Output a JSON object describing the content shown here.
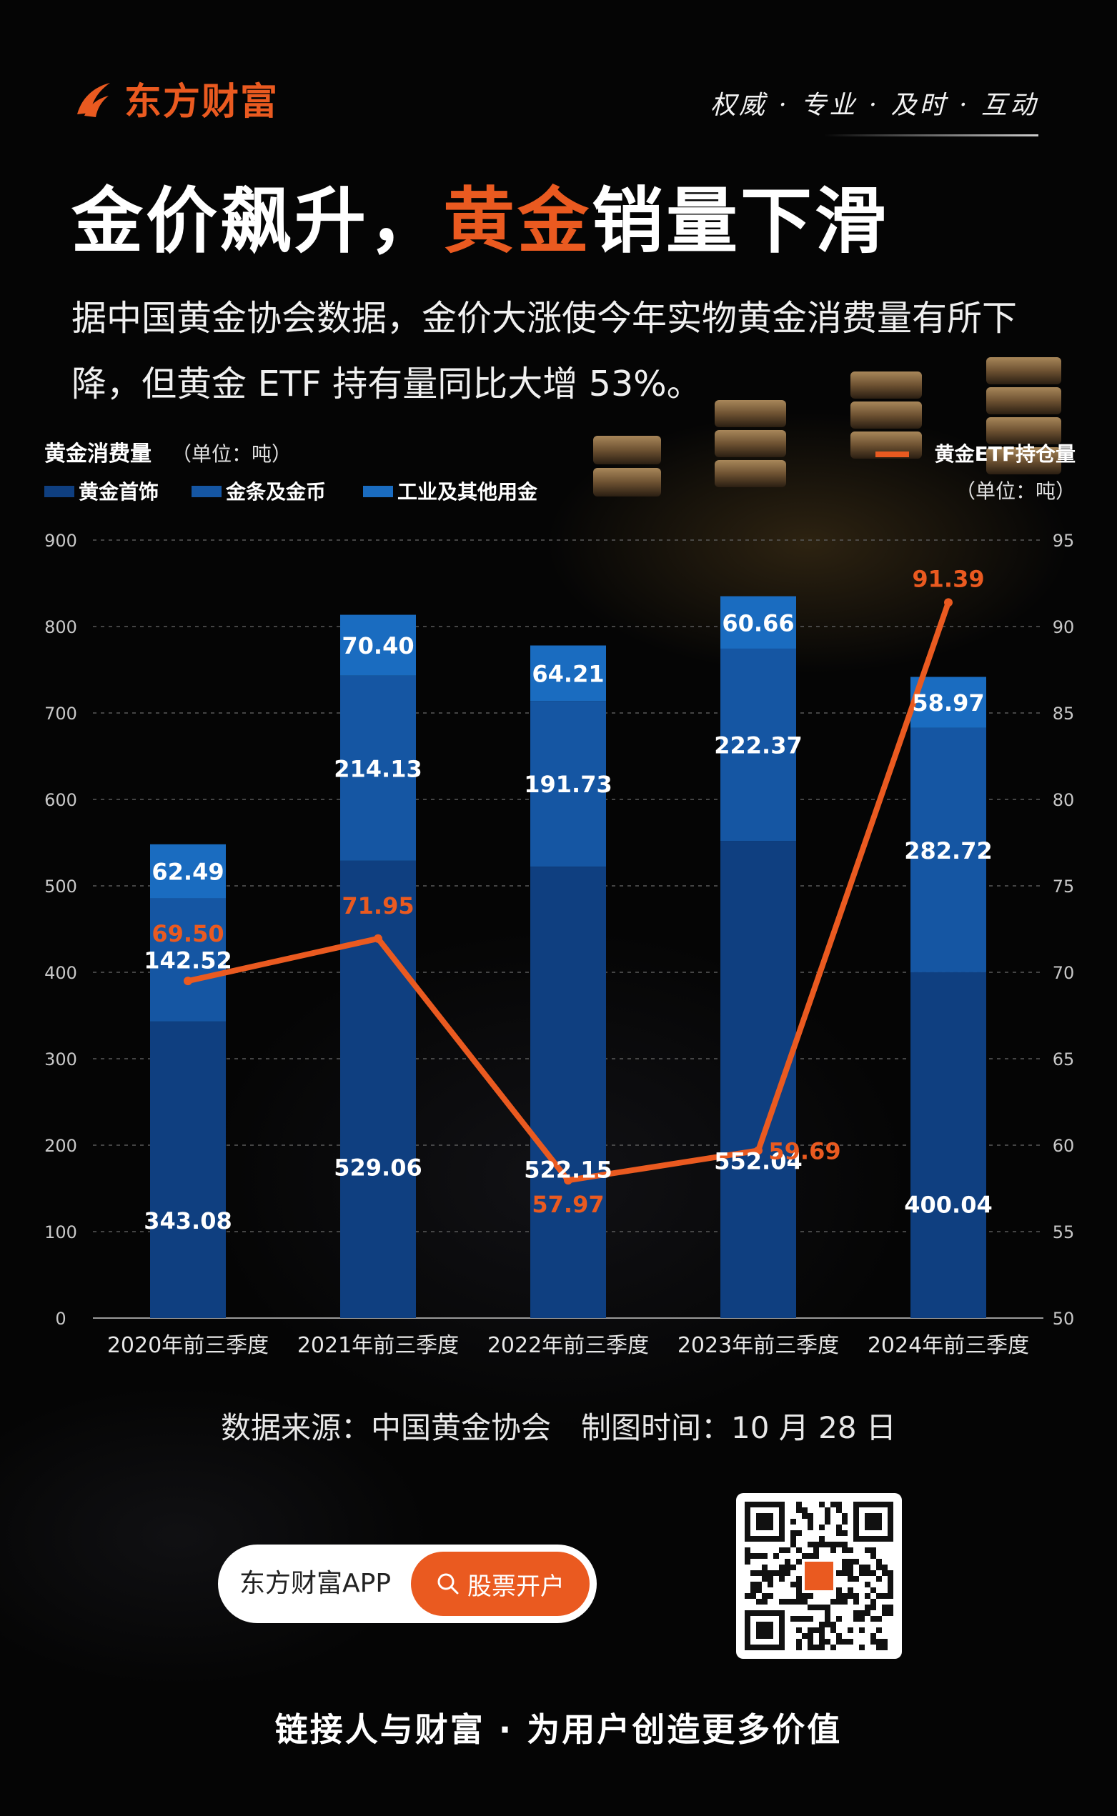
{
  "brand": {
    "name": "东方财富",
    "slogan": "权威 · 专业 · 及时 · 互动",
    "color": "#ea5a20"
  },
  "title": {
    "part1": "金价飙升，",
    "highlight": "黄金",
    "part2": "销量下滑"
  },
  "subtitle": "据中国黄金协会数据，金价大涨使今年实物黄金消费量有所下降，但黄金 ETF 持有量同比大增 53%。",
  "chart_data": {
    "type": "bar",
    "stacked": true,
    "left_axis_title": "黄金消费量",
    "left_axis_unit": "（单位：吨）",
    "right_axis_series_label": "黄金ETF持仓量",
    "right_axis_unit": "（单位：吨）",
    "categories": [
      "2020年前三季度",
      "2021年前三季度",
      "2022年前三季度",
      "2023年前三季度",
      "2024年前三季度"
    ],
    "series": [
      {
        "name": "黄金首饰",
        "color": "#0f3f80",
        "values": [
          343.08,
          529.06,
          522.15,
          552.04,
          400.04
        ],
        "labels": [
          "343.08",
          "529.06",
          "522.15",
          "552.04",
          "400.04"
        ]
      },
      {
        "name": "金条及金币",
        "color": "#1556a3",
        "values": [
          142.52,
          214.13,
          191.73,
          222.37,
          282.72
        ],
        "labels": [
          "142.52",
          "214.13",
          "191.73",
          "222.37",
          "282.72"
        ]
      },
      {
        "name": "工业及其他用金",
        "color": "#1a6cc0",
        "values": [
          62.49,
          70.4,
          64.21,
          60.66,
          58.97
        ],
        "labels": [
          "62.49",
          "70.40",
          "64.21",
          "60.66",
          "58.97"
        ]
      }
    ],
    "line_series": {
      "name": "黄金ETF持仓量",
      "color": "#ea5a20",
      "values": [
        69.5,
        71.95,
        57.97,
        59.69,
        91.39
      ],
      "labels": [
        "69.50",
        "71.95",
        "57.97",
        "59.69",
        "91.39"
      ]
    },
    "left_ylim": [
      0,
      900
    ],
    "left_ticks": [
      "0",
      "100",
      "200",
      "300",
      "400",
      "500",
      "600",
      "700",
      "800",
      "900"
    ],
    "right_ylim": [
      50,
      95
    ],
    "right_ticks": [
      "50",
      "55",
      "60",
      "65",
      "70",
      "75",
      "80",
      "85",
      "90",
      "95"
    ],
    "grid": true,
    "legend": "top-left"
  },
  "source": "数据来源：中国黄金协会　制图时间：10 月 28 日",
  "app": {
    "name": "东方财富APP",
    "button": "股票开户"
  },
  "footer": "链接人与财富 · 为用户创造更多价值"
}
